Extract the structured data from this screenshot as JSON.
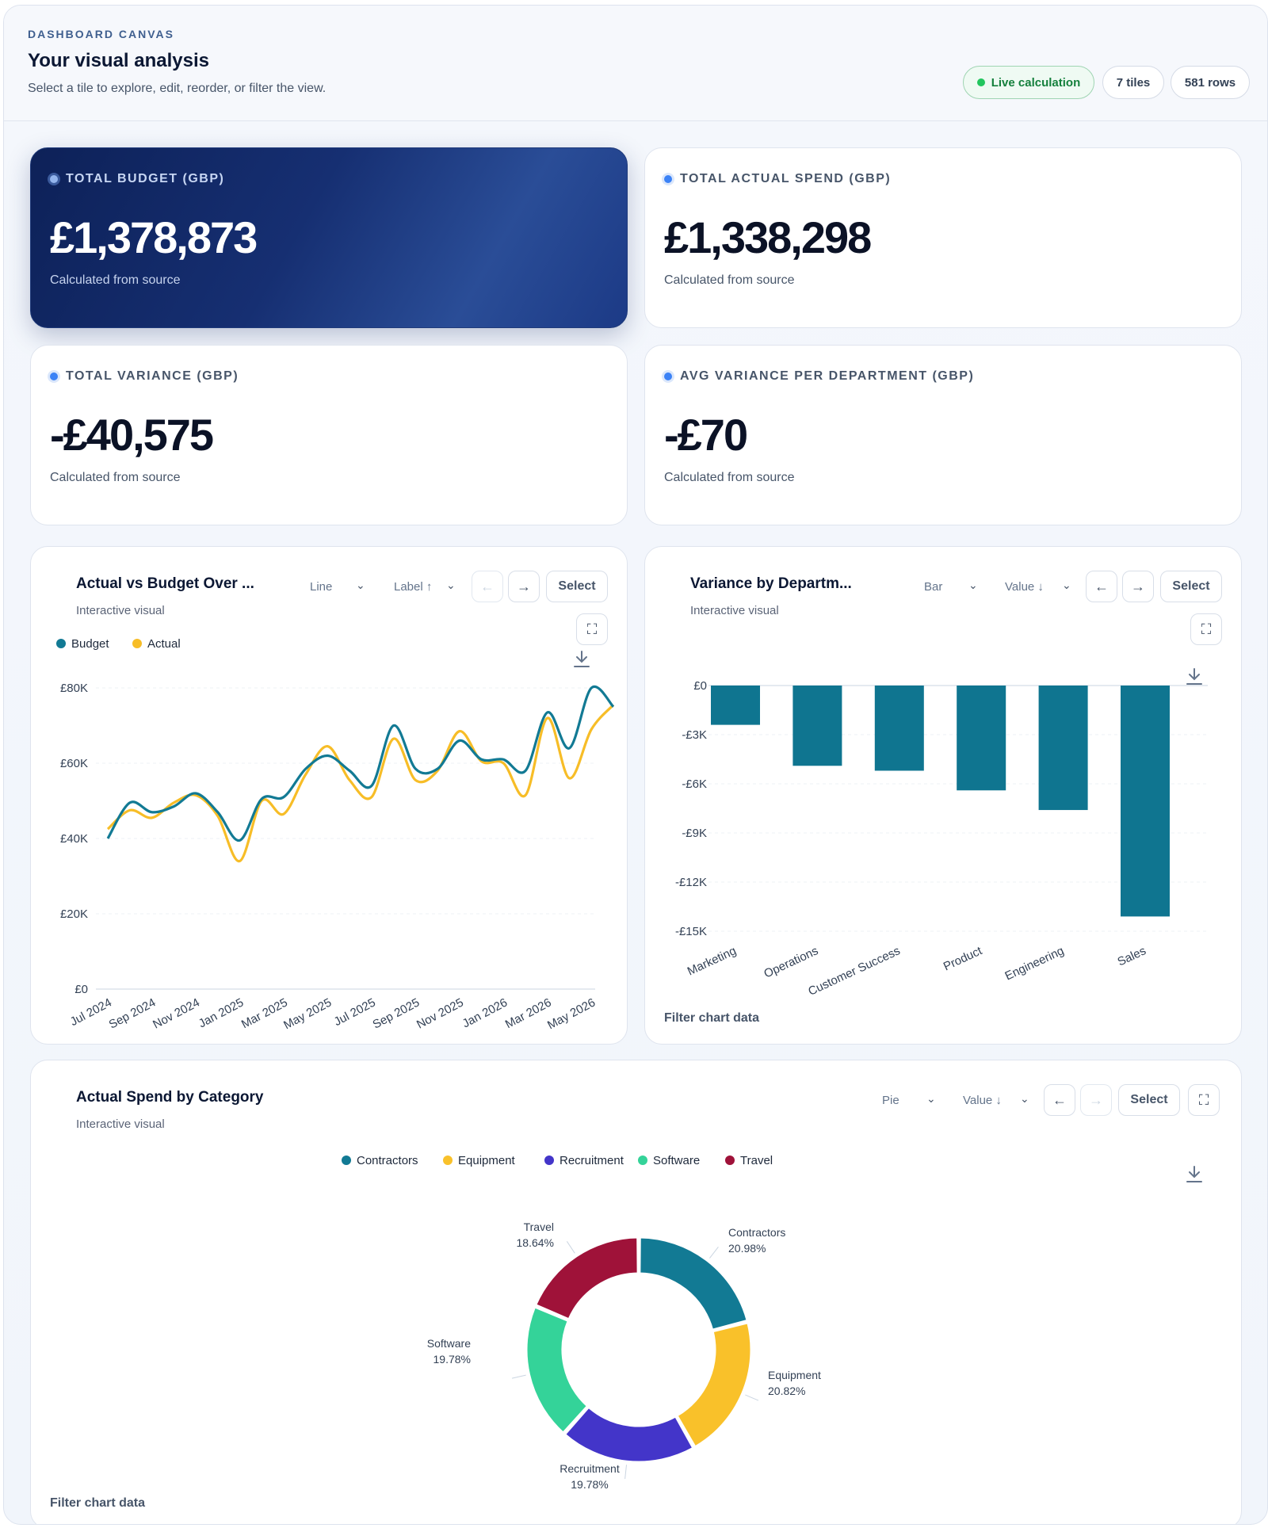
{
  "header": {
    "eyebrow": "DASHBOARD CANVAS",
    "title": "Your visual analysis",
    "subtitle": "Select a tile to explore, edit, reorder, or filter the view.",
    "badges": {
      "live": "Live calculation",
      "tiles": "7 tiles",
      "rows": "581 rows"
    }
  },
  "kpis": [
    {
      "label": "TOTAL BUDGET (GBP)",
      "value": "£1,378,873",
      "note": "Calculated from source"
    },
    {
      "label": "TOTAL ACTUAL SPEND (GBP)",
      "value": "£1,338,298",
      "note": "Calculated from source"
    },
    {
      "label": "TOTAL VARIANCE (GBP)",
      "value": "-£40,575",
      "note": "Calculated from source"
    },
    {
      "label": "AVG VARIANCE PER DEPARTMENT (GBP)",
      "value": "-£70",
      "note": "Calculated from source"
    }
  ],
  "line_tile": {
    "title": "Actual vs Budget Over ...",
    "subtitle": "Interactive visual",
    "type_select": "Line",
    "sort_select": "Label ↑",
    "select_label": "Select"
  },
  "bar_tile": {
    "title": "Variance by Departm...",
    "subtitle": "Interactive visual",
    "type_select": "Bar",
    "sort_select": "Value ↓",
    "select_label": "Select",
    "filter_label": "Filter chart data"
  },
  "pie_tile": {
    "title": "Actual Spend by Category",
    "subtitle": "Interactive visual",
    "type_select": "Pie",
    "sort_select": "Value ↓",
    "select_label": "Select",
    "filter_label": "Filter chart data"
  },
  "icons": {
    "chevron": "chevron-down-icon",
    "prev": "arrow-left-icon",
    "next": "arrow-right-icon",
    "expand": "expand-icon",
    "download": "download-icon"
  },
  "colors": {
    "budget": "#127a94",
    "actual": "#f7bd27",
    "bar": "#0f7590",
    "hero_bg": "#0d2158",
    "live": "#22c55e"
  },
  "chart_data": [
    {
      "type": "line",
      "x": [
        "Jul 2024",
        "Aug 2024",
        "Sep 2024",
        "Oct 2024",
        "Nov 2024",
        "Dec 2024",
        "Jan 2025",
        "Feb 2025",
        "Mar 2025",
        "Apr 2025",
        "May 2025",
        "Jun 2025",
        "Jul 2025",
        "Aug 2025",
        "Sep 2025",
        "Oct 2025",
        "Nov 2025",
        "Dec 2025",
        "Jan 2026",
        "Feb 2026",
        "Mar 2026",
        "Apr 2026",
        "May 2026",
        "Jun 2026"
      ],
      "x_tick_labels": [
        "Jul 2024",
        "Sep 2024",
        "Nov 2024",
        "Jan 2025",
        "Mar 2025",
        "May 2025",
        "Jul 2025",
        "Sep 2025",
        "Nov 2025",
        "Jan 2026",
        "Mar 2026",
        "May 2026"
      ],
      "series": [
        {
          "name": "Budget",
          "color": "#127a94",
          "values": [
            40000,
            49500,
            47000,
            48500,
            52000,
            47000,
            39500,
            50500,
            51000,
            58500,
            62000,
            58000,
            54000,
            70000,
            58500,
            58500,
            66000,
            61000,
            61000,
            58000,
            73500,
            64000,
            80000,
            75000
          ]
        },
        {
          "name": "Actual",
          "color": "#f7bd27",
          "values": [
            42500,
            47500,
            45500,
            49500,
            51500,
            46000,
            34000,
            50000,
            46500,
            57000,
            64500,
            55500,
            51000,
            66500,
            55500,
            58000,
            68500,
            60500,
            60000,
            51500,
            72000,
            56000,
            69000,
            75500
          ]
        }
      ],
      "y_ticks": [
        "£0",
        "£20K",
        "£40K",
        "£60K",
        "£80K"
      ],
      "ylim": [
        0,
        80000
      ],
      "legend": "top-left"
    },
    {
      "type": "bar",
      "categories": [
        "Marketing",
        "Operations",
        "Customer Success",
        "Product",
        "Engineering",
        "Sales"
      ],
      "values": [
        -2400,
        -4900,
        -5200,
        -6400,
        -7600,
        -14100
      ],
      "y_ticks": [
        "£0",
        "-£3K",
        "-£6K",
        "-£9K",
        "-£12K",
        "-£15K"
      ],
      "ylim": [
        -15000,
        0
      ]
    },
    {
      "type": "pie",
      "donut": true,
      "categories": [
        "Contractors",
        "Equipment",
        "Recruitment",
        "Software",
        "Travel"
      ],
      "colors": [
        "#127a94",
        "#f9c12a",
        "#4335c9",
        "#34d399",
        "#9f1239"
      ],
      "values": [
        20.98,
        20.82,
        19.78,
        19.78,
        18.64
      ],
      "value_labels": [
        "20.98%",
        "20.82%",
        "19.78%",
        "19.78%",
        "18.64%"
      ],
      "legend": "top"
    }
  ]
}
